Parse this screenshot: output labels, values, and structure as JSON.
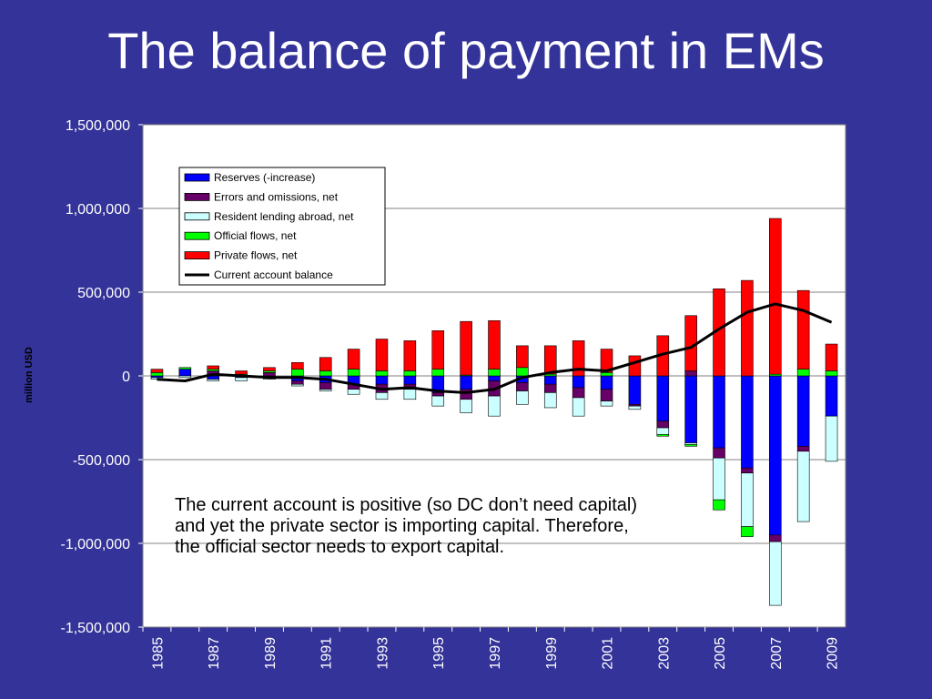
{
  "slide": {
    "title": "The balance of payment in EMs",
    "background": "#333399",
    "note": "The current account is positive (so DC don’t need capital) and yet the private sector is importing capital. Therefore, the official sector needs to export capital."
  },
  "chart_data": {
    "type": "bar",
    "stacked": true,
    "title": "",
    "xlabel": "",
    "ylabel": "million USD",
    "ylim": [
      -1500000,
      1500000
    ],
    "y_ticks": [
      1500000,
      1000000,
      500000,
      0,
      -500000,
      -1000000,
      -1500000
    ],
    "y_tick_labels": [
      "1,500,000",
      "1,000,000",
      "500,000",
      "0",
      "-500,000",
      "-1,000,000",
      "-1,500,000"
    ],
    "grid": true,
    "legend_position": "top-left",
    "x": [
      1985,
      1986,
      1987,
      1988,
      1989,
      1990,
      1991,
      1992,
      1993,
      1994,
      1995,
      1996,
      1997,
      1998,
      1999,
      2000,
      2001,
      2002,
      2003,
      2004,
      2005,
      2006,
      2007,
      2008,
      2009
    ],
    "x_tick_labels": [
      "1985",
      "1987",
      "1989",
      "1991",
      "1993",
      "1995",
      "1997",
      "1999",
      "2001",
      "2003",
      "2005",
      "2007",
      "2009"
    ],
    "series": [
      {
        "name": "Reserves (-increase)",
        "color": "#0000ff",
        "kind": "bar",
        "values": [
          -10000,
          40000,
          -20000,
          -10000,
          -10000,
          -30000,
          -40000,
          -50000,
          -50000,
          -50000,
          -100000,
          -80000,
          -30000,
          -40000,
          -50000,
          -70000,
          -80000,
          -170000,
          -270000,
          -400000,
          -430000,
          -550000,
          -950000,
          -420000,
          -240000
        ]
      },
      {
        "name": "Errors and omissions, net",
        "color": "#660066",
        "kind": "bar",
        "values": [
          0,
          0,
          30000,
          0,
          20000,
          -20000,
          -40000,
          -30000,
          -50000,
          -30000,
          -20000,
          -60000,
          -90000,
          -50000,
          -50000,
          -60000,
          -70000,
          -10000,
          -40000,
          30000,
          -60000,
          -30000,
          -40000,
          -30000,
          0
        ]
      },
      {
        "name": "Resident lending abroad, net",
        "color": "#ccffff",
        "kind": "bar",
        "values": [
          -10000,
          -10000,
          -10000,
          -20000,
          -10000,
          -10000,
          -10000,
          -30000,
          -40000,
          -60000,
          -60000,
          -80000,
          -120000,
          -80000,
          -90000,
          -110000,
          -30000,
          -20000,
          -40000,
          -10000,
          -250000,
          -320000,
          -380000,
          -420000,
          -270000
        ]
      },
      {
        "name": "Official flows, net",
        "color": "#00ff00",
        "kind": "bar",
        "values": [
          20000,
          10000,
          10000,
          10000,
          10000,
          40000,
          30000,
          40000,
          30000,
          30000,
          40000,
          5000,
          40000,
          50000,
          10000,
          0,
          20000,
          0,
          -10000,
          -10000,
          -60000,
          -60000,
          10000,
          40000,
          30000
        ]
      },
      {
        "name": "Private flows, net",
        "color": "#ff0000",
        "kind": "bar",
        "values": [
          20000,
          0,
          20000,
          20000,
          20000,
          40000,
          80000,
          120000,
          190000,
          180000,
          230000,
          320000,
          290000,
          130000,
          170000,
          210000,
          140000,
          120000,
          240000,
          330000,
          520000,
          570000,
          930000,
          470000,
          160000
        ]
      },
      {
        "name": "Current account balance",
        "color": "#000000",
        "kind": "line",
        "values": [
          -20000,
          -30000,
          10000,
          0,
          -10000,
          -10000,
          -20000,
          -50000,
          -80000,
          -70000,
          -90000,
          -100000,
          -80000,
          -10000,
          20000,
          40000,
          30000,
          80000,
          130000,
          170000,
          280000,
          380000,
          430000,
          390000,
          320000
        ]
      }
    ]
  }
}
